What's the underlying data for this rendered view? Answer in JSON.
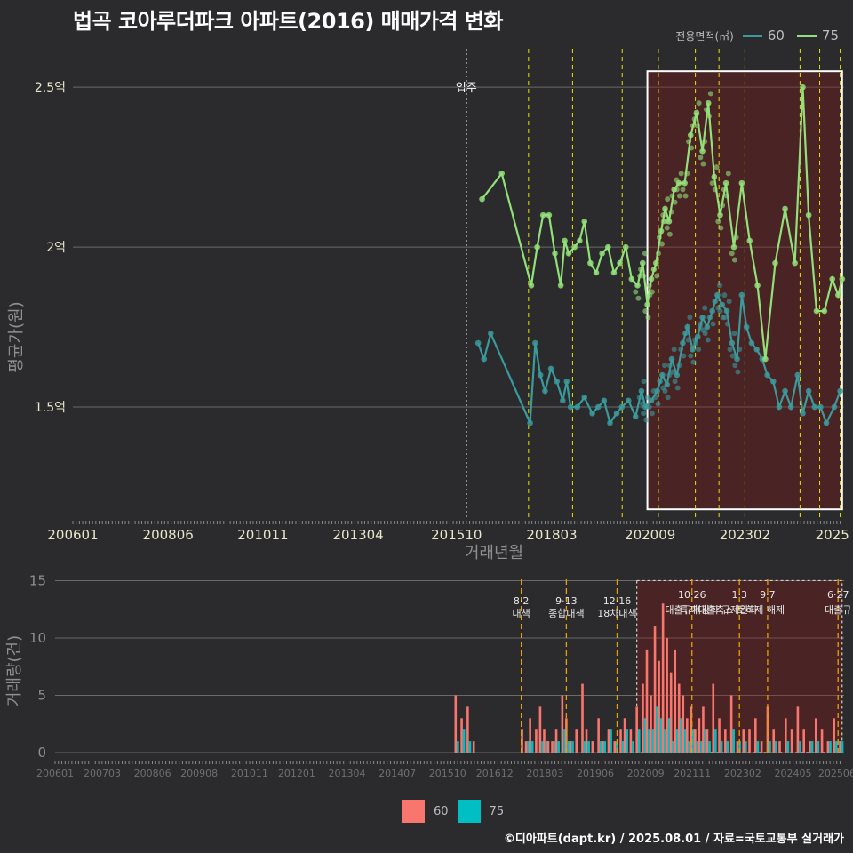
{
  "title": "법곡 코아루더파크 아파트(2016) 매매가격 변화",
  "legend_top": {
    "title": "전용면적(㎡)",
    "items": [
      {
        "label": "60",
        "color": "#3b9a9c"
      },
      {
        "label": "75",
        "color": "#92e07a"
      }
    ]
  },
  "legend_bottom": {
    "items": [
      {
        "label": "60",
        "color": "#f8766d"
      },
      {
        "label": "75",
        "color": "#00bfc4"
      }
    ]
  },
  "source": "©디아파트(dapt.kr) / 2025.08.01 / 자료=국토교통부 실거래가",
  "chart_data": [
    {
      "type": "line",
      "ylabel": "평균가(원)",
      "xlabel": "거래년월",
      "x_tick_labels": [
        "200601",
        "200806",
        "201011",
        "201304",
        "201510",
        "201803",
        "202009",
        "202302",
        "2025"
      ],
      "y_tick_labels": [
        "1.5억",
        "2억",
        "2.5억"
      ],
      "y_ticks": [
        1.5,
        2.0,
        2.5
      ],
      "ylim": [
        1.15,
        2.62
      ],
      "xlim": [
        2006.0,
        2025.6
      ],
      "annotation_move_in": {
        "label": "입주",
        "x": 2016.0
      },
      "policy_lines": [
        2017.58,
        2018.7,
        2019.96,
        2020.88,
        2021.82,
        2022.42,
        2023.08,
        2024.48,
        2024.98,
        2025.5
      ],
      "highlight_range": {
        "x": [
          2020.6,
          2025.55
        ],
        "y": [
          1.18,
          2.55
        ]
      },
      "series": [
        {
          "name": "60",
          "color": "#3b9a9c",
          "x": [
            2016.3,
            2016.45,
            2016.62,
            2017.62,
            2017.75,
            2017.88,
            2018.0,
            2018.15,
            2018.3,
            2018.45,
            2018.55,
            2018.65,
            2018.82,
            2019.0,
            2019.2,
            2019.35,
            2019.5,
            2019.65,
            2019.82,
            2019.95,
            2020.12,
            2020.3,
            2020.45,
            2020.55,
            2020.7,
            2020.85,
            2020.98,
            2021.1,
            2021.22,
            2021.35,
            2021.5,
            2021.62,
            2021.75,
            2021.88,
            2022.0,
            2022.12,
            2022.25,
            2022.38,
            2022.5,
            2022.62,
            2022.75,
            2022.88,
            2023.0,
            2023.12,
            2023.25,
            2023.38,
            2023.52,
            2023.65,
            2023.8,
            2023.95,
            2024.1,
            2024.25,
            2024.42,
            2024.55,
            2024.7,
            2024.85,
            2025.0,
            2025.15,
            2025.35,
            2025.5
          ],
          "values": [
            1.7,
            1.65,
            1.73,
            1.45,
            1.7,
            1.6,
            1.55,
            1.62,
            1.58,
            1.52,
            1.58,
            1.5,
            1.5,
            1.53,
            1.48,
            1.5,
            1.52,
            1.45,
            1.48,
            1.5,
            1.52,
            1.47,
            1.55,
            1.5,
            1.52,
            1.55,
            1.6,
            1.57,
            1.65,
            1.6,
            1.7,
            1.75,
            1.68,
            1.72,
            1.78,
            1.75,
            1.8,
            1.85,
            1.82,
            1.8,
            1.7,
            1.65,
            1.85,
            1.75,
            1.7,
            1.68,
            1.65,
            1.6,
            1.58,
            1.5,
            1.55,
            1.5,
            1.6,
            1.48,
            1.55,
            1.5,
            1.5,
            1.45,
            1.5,
            1.55
          ]
        },
        {
          "name": "75",
          "color": "#92e07a",
          "x": [
            2016.4,
            2016.9,
            2017.65,
            2017.8,
            2017.95,
            2018.1,
            2018.25,
            2018.4,
            2018.5,
            2018.6,
            2018.75,
            2018.88,
            2019.0,
            2019.15,
            2019.3,
            2019.45,
            2019.6,
            2019.75,
            2019.9,
            2020.05,
            2020.2,
            2020.35,
            2020.48,
            2020.6,
            2020.7,
            2020.82,
            2020.95,
            2021.05,
            2021.15,
            2021.28,
            2021.4,
            2021.55,
            2021.7,
            2021.85,
            2022.0,
            2022.15,
            2022.3,
            2022.45,
            2022.6,
            2022.8,
            2023.0,
            2023.2,
            2023.4,
            2023.6,
            2023.85,
            2024.1,
            2024.35,
            2024.55,
            2024.7,
            2024.9,
            2025.1,
            2025.3,
            2025.45,
            2025.55
          ],
          "values": [
            2.15,
            2.23,
            1.88,
            2.0,
            2.1,
            2.1,
            1.98,
            1.88,
            2.02,
            1.98,
            2.0,
            2.02,
            2.08,
            1.95,
            1.92,
            1.98,
            2.0,
            1.92,
            1.95,
            2.0,
            1.9,
            1.88,
            1.95,
            1.82,
            1.9,
            1.95,
            2.05,
            2.12,
            2.08,
            2.18,
            2.2,
            2.2,
            2.35,
            2.42,
            2.3,
            2.45,
            2.22,
            2.1,
            2.2,
            2.0,
            2.2,
            2.02,
            1.88,
            1.65,
            1.95,
            2.12,
            1.95,
            2.5,
            2.1,
            1.8,
            1.8,
            1.9,
            1.85,
            1.9
          ]
        }
      ]
    },
    {
      "type": "bar",
      "ylabel": "거래량(건)",
      "x_tick_labels": [
        "200601",
        "200703",
        "200806",
        "200908",
        "201011",
        "201201",
        "201304",
        "201407",
        "201510",
        "201612",
        "201803",
        "201906",
        "202009",
        "202111",
        "202302",
        "202405",
        "202506"
      ],
      "y_ticks": [
        0,
        5,
        10,
        15
      ],
      "ylim": [
        0,
        15.5
      ],
      "xlim": [
        2006.0,
        2025.6
      ],
      "policy_annotations": [
        {
          "date": "8·2",
          "label": "대책",
          "x": 2017.58
        },
        {
          "date": "9·13",
          "label": "종합대책",
          "x": 2018.7
        },
        {
          "date": "12·16",
          "label": "18차대책",
          "x": 2019.96
        },
        {
          "date": "10·26",
          "label": "대출규제강화",
          "x": 2021.82
        },
        {
          "date": "1·3",
          "label": "규제완화",
          "x": 2023.0
        },
        {
          "date": "9·7",
          "label": "특례대출축소 토허제 해제",
          "x": 2023.7
        },
        {
          "date": "6·27",
          "label": "대출규",
          "x": 2025.45
        }
      ],
      "bar_x": [
        2015.95,
        2016.1,
        2016.25,
        2016.4,
        2017.6,
        2017.7,
        2017.8,
        2017.95,
        2018.05,
        2018.15,
        2018.25,
        2018.35,
        2018.45,
        2018.6,
        2018.7,
        2018.8,
        2018.95,
        2019.1,
        2019.2,
        2019.35,
        2019.5,
        2019.6,
        2019.75,
        2019.9,
        2020.05,
        2020.15,
        2020.3,
        2020.45,
        2020.6,
        2020.7,
        2020.8,
        2020.9,
        2021.0,
        2021.1,
        2021.2,
        2021.3,
        2021.4,
        2021.5,
        2021.6,
        2021.7,
        2021.8,
        2021.9,
        2022.0,
        2022.1,
        2022.2,
        2022.35,
        2022.5,
        2022.65,
        2022.8,
        2022.95,
        2023.1,
        2023.25,
        2023.4,
        2023.55,
        2023.7,
        2023.85,
        2024.0,
        2024.15,
        2024.3,
        2024.45,
        2024.6,
        2024.75,
        2024.9,
        2025.05,
        2025.2,
        2025.35,
        2025.5
      ],
      "series": [
        {
          "name": "60",
          "color": "#f8766d",
          "values": [
            5,
            3,
            4,
            1,
            2,
            1,
            3,
            2,
            4,
            2,
            1,
            1,
            2,
            5,
            3,
            1,
            2,
            6,
            2,
            1,
            3,
            1,
            2,
            1,
            2,
            3,
            2,
            4,
            6,
            9,
            5,
            11,
            8,
            13,
            10,
            7,
            9,
            6,
            5,
            3,
            4,
            2,
            3,
            4,
            2,
            6,
            3,
            2,
            5,
            1,
            2,
            2,
            3,
            1,
            4,
            2,
            1,
            3,
            2,
            4,
            2,
            1,
            3,
            2,
            1,
            3,
            1
          ]
        },
        {
          "name": "75",
          "color": "#00bfc4",
          "values": [
            1,
            2,
            1,
            0,
            0,
            1,
            1,
            0,
            1,
            1,
            0,
            1,
            1,
            2,
            1,
            1,
            0,
            1,
            1,
            0,
            1,
            1,
            2,
            1,
            1,
            2,
            1,
            2,
            3,
            2,
            2,
            4,
            3,
            2,
            3,
            1,
            2,
            3,
            2,
            1,
            2,
            1,
            1,
            2,
            1,
            2,
            1,
            1,
            2,
            1,
            1,
            0,
            1,
            0,
            1,
            1,
            0,
            1,
            0,
            1,
            0,
            1,
            1,
            0,
            1,
            1,
            1
          ]
        }
      ]
    }
  ]
}
